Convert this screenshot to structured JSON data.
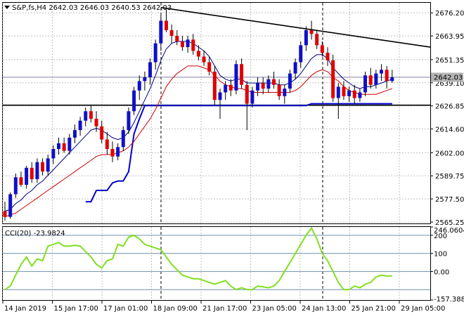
{
  "header": {
    "symbol_line": "S&P,fs,H4  2642.03 2646.03 2640.53 2642.03"
  },
  "indicator": {
    "label": "CCI(20) -23.9824",
    "top_value": "246.0604",
    "bottom_value": "-157.388"
  },
  "price_tag": "2642.03",
  "colors": {
    "bull": "#1010c8",
    "bear": "#e00000",
    "ma_fast": "#000080",
    "ma_slow": "#cc0000",
    "support": "#0000cc",
    "cci": "#80e020",
    "level_lines": "#7090b0",
    "price_tag_bg": "#b4b4b4"
  },
  "chart_data": [
    {
      "type": "candlestick",
      "title": "S&P,fs,H4",
      "x": [
        "14 Jan 2019",
        "15 Jan 17:00",
        "17 Jan 01:00",
        "18 Jan 09:00",
        "21 Jan 17:00",
        "23 Jan 05:00",
        "24 Jan 13:00",
        "25 Jan 21:00",
        "29 Jan 05:00"
      ],
      "y_ticks": [
        "2676.20",
        "2663.95",
        "2651.35",
        "2639.10",
        "2626.85",
        "2614.60",
        "2602.00",
        "2589.75",
        "2577.50",
        "2565.25"
      ],
      "ylim": [
        2564.5,
        2681.5
      ],
      "ohlc": [
        [
          2571,
          2576,
          2566,
          2568
        ],
        [
          2568,
          2581,
          2567,
          2580
        ],
        [
          2580,
          2591,
          2578,
          2589
        ],
        [
          2589,
          2592,
          2584,
          2585
        ],
        [
          2585,
          2595,
          2583,
          2594
        ],
        [
          2594,
          2597,
          2586,
          2588
        ],
        [
          2588,
          2599,
          2586,
          2597
        ],
        [
          2597,
          2599,
          2590,
          2592
        ],
        [
          2592,
          2601,
          2590,
          2599
        ],
        [
          2599,
          2606,
          2596,
          2604
        ],
        [
          2604,
          2610,
          2601,
          2607
        ],
        [
          2607,
          2610,
          2602,
          2603
        ],
        [
          2603,
          2612,
          2601,
          2610
        ],
        [
          2610,
          2617,
          2607,
          2614
        ],
        [
          2614,
          2621,
          2611,
          2619
        ],
        [
          2619,
          2626,
          2616,
          2624
        ],
        [
          2624,
          2627,
          2618,
          2620
        ],
        [
          2620,
          2624,
          2613,
          2616
        ],
        [
          2616,
          2619,
          2607,
          2609
        ],
        [
          2609,
          2613,
          2601,
          2604
        ],
        [
          2604,
          2608,
          2597,
          2600
        ],
        [
          2600,
          2607,
          2598,
          2605
        ],
        [
          2605,
          2616,
          2603,
          2614
        ],
        [
          2614,
          2626,
          2612,
          2624
        ],
        [
          2624,
          2637,
          2622,
          2635
        ],
        [
          2635,
          2643,
          2630,
          2640
        ],
        [
          2640,
          2645,
          2635,
          2642
        ],
        [
          2642,
          2652,
          2638,
          2650
        ],
        [
          2650,
          2662,
          2646,
          2660
        ],
        [
          2660,
          2675,
          2656,
          2672
        ],
        [
          2672,
          2678,
          2666,
          2667
        ],
        [
          2667,
          2670,
          2660,
          2664
        ],
        [
          2664,
          2667,
          2659,
          2661
        ],
        [
          2661,
          2664,
          2656,
          2658
        ],
        [
          2658,
          2664,
          2655,
          2662
        ],
        [
          2662,
          2665,
          2654,
          2656
        ],
        [
          2656,
          2659,
          2651,
          2653
        ],
        [
          2653,
          2656,
          2648,
          2650
        ],
        [
          2650,
          2653,
          2643,
          2645
        ],
        [
          2645,
          2648,
          2627,
          2630
        ],
        [
          2630,
          2636,
          2620,
          2634
        ],
        [
          2634,
          2640,
          2630,
          2638
        ],
        [
          2638,
          2641,
          2632,
          2635
        ],
        [
          2635,
          2651,
          2633,
          2649
        ],
        [
          2649,
          2652,
          2636,
          2638
        ],
        [
          2638,
          2640,
          2614,
          2628
        ],
        [
          2628,
          2637,
          2626,
          2635
        ],
        [
          2635,
          2642,
          2632,
          2639
        ],
        [
          2639,
          2642,
          2633,
          2636
        ],
        [
          2636,
          2643,
          2634,
          2641
        ],
        [
          2641,
          2645,
          2636,
          2638
        ],
        [
          2638,
          2641,
          2630,
          2632
        ],
        [
          2632,
          2638,
          2628,
          2636
        ],
        [
          2636,
          2646,
          2634,
          2644
        ],
        [
          2644,
          2652,
          2641,
          2650
        ],
        [
          2650,
          2661,
          2647,
          2659
        ],
        [
          2659,
          2669,
          2656,
          2667
        ],
        [
          2667,
          2672,
          2662,
          2665
        ],
        [
          2665,
          2667,
          2657,
          2659
        ],
        [
          2659,
          2661,
          2653,
          2655
        ],
        [
          2655,
          2658,
          2648,
          2651
        ],
        [
          2651,
          2654,
          2629,
          2631
        ],
        [
          2631,
          2639,
          2620,
          2637
        ],
        [
          2637,
          2640,
          2630,
          2632
        ],
        [
          2632,
          2637,
          2629,
          2635
        ],
        [
          2635,
          2638,
          2628,
          2631
        ],
        [
          2631,
          2636,
          2629,
          2634
        ],
        [
          2634,
          2645,
          2632,
          2643
        ],
        [
          2643,
          2647,
          2636,
          2638
        ],
        [
          2638,
          2646,
          2636,
          2644
        ],
        [
          2644,
          2649,
          2640,
          2646
        ],
        [
          2646,
          2648,
          2636,
          2640
        ],
        [
          2640,
          2646,
          2639,
          2642
        ]
      ],
      "ma_fast": [
        2571,
        2572,
        2575,
        2577,
        2580,
        2582,
        2585,
        2587,
        2590,
        2593,
        2596,
        2599,
        2602,
        2605,
        2608,
        2611,
        2614,
        2615,
        2614,
        2612,
        2610,
        2609,
        2610,
        2613,
        2618,
        2624,
        2630,
        2636,
        2643,
        2651,
        2657,
        2660,
        2661,
        2661,
        2661,
        2660,
        2658,
        2656,
        2653,
        2648,
        2643,
        2641,
        2640,
        2641,
        2641,
        2639,
        2639,
        2639,
        2639,
        2639,
        2639,
        2638,
        2638,
        2639,
        2641,
        2644,
        2648,
        2652,
        2654,
        2654,
        2652,
        2647,
        2644,
        2641,
        2639,
        2637,
        2636,
        2637,
        2637,
        2638,
        2639,
        2640,
        2641
      ],
      "ma_slow": [
        2568,
        2569,
        2570,
        2572,
        2574,
        2576,
        2578,
        2580,
        2582,
        2584,
        2586,
        2588,
        2590,
        2592,
        2594,
        2596,
        2598,
        2600,
        2601,
        2601,
        2601,
        2602,
        2603,
        2605,
        2608,
        2612,
        2616,
        2620,
        2625,
        2631,
        2637,
        2641,
        2644,
        2646,
        2648,
        2648,
        2648,
        2647,
        2646,
        2643,
        2640,
        2638,
        2637,
        2636,
        2636,
        2635,
        2634,
        2634,
        2634,
        2634,
        2634,
        2634,
        2634,
        2634,
        2635,
        2637,
        2640,
        2643,
        2645,
        2646,
        2645,
        2642,
        2640,
        2637,
        2635,
        2634,
        2633,
        2633,
        2633,
        2633,
        2634,
        2635,
        2636
      ],
      "support_line": [
        null,
        null,
        null,
        null,
        null,
        null,
        null,
        null,
        null,
        null,
        null,
        null,
        null,
        null,
        null,
        2576,
        2576,
        2582,
        2582,
        2582,
        2586,
        2587,
        2587,
        2592,
        2612,
        2620,
        2627,
        2627,
        2627,
        2627,
        2627,
        2627,
        2627,
        2627,
        2627,
        2627,
        2627,
        2627,
        2627,
        2627,
        2627,
        2627,
        2627,
        2627,
        2627,
        2627,
        2627,
        2627,
        2627,
        2627,
        2627,
        2627,
        2627,
        2627,
        2627,
        2627,
        2627,
        2628,
        2628,
        2628,
        2628,
        2628,
        2628,
        2628,
        2628,
        2628,
        2628,
        2628,
        2628,
        2628,
        2628,
        2628,
        2628
      ],
      "trendline_upper": [
        [
          29,
          2679
        ],
        [
          73,
          2658
        ]
      ],
      "trendline_lower": [
        [
          0,
          2627.2
        ],
        [
          73,
          2627.2
        ]
      ],
      "current_price": 2642.03
    },
    {
      "type": "line",
      "title": "CCI(20) -23.9824",
      "y_ticks": [
        "246.0604",
        "200",
        "100",
        "0.00",
        "-157.388"
      ],
      "levels": [
        200,
        100,
        0,
        -100
      ],
      "ylim": [
        -157.388,
        246.0604
      ],
      "values": [
        -100,
        -80,
        -20,
        40,
        80,
        30,
        70,
        60,
        140,
        150,
        160,
        140,
        140,
        145,
        140,
        110,
        80,
        40,
        20,
        60,
        70,
        150,
        140,
        190,
        200,
        180,
        150,
        140,
        130,
        120,
        80,
        40,
        10,
        -20,
        -30,
        -40,
        -40,
        -50,
        -60,
        -70,
        -60,
        -50,
        -80,
        -100,
        -90,
        -100,
        -100,
        -80,
        -85,
        -90,
        -80,
        -50,
        0,
        50,
        100,
        150,
        200,
        240,
        180,
        100,
        60,
        0,
        -60,
        -100,
        -100,
        -80,
        -90,
        -70,
        -60,
        -30,
        -20,
        -25,
        -24
      ]
    }
  ]
}
